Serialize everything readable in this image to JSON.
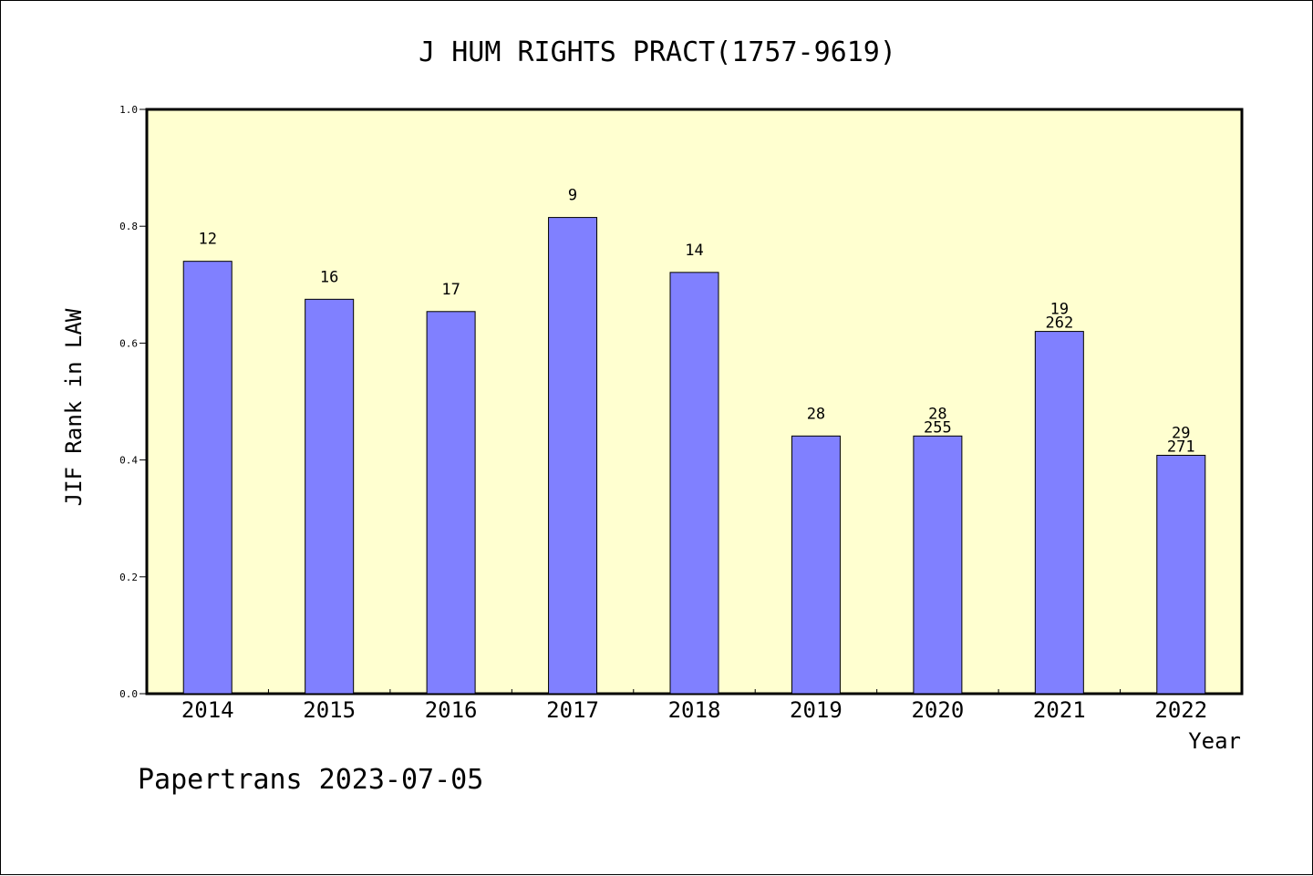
{
  "chart_data": {
    "type": "bar",
    "title": "J HUM RIGHTS PRACT(1757-9619)",
    "xlabel": "Year",
    "ylabel": "JIF Rank in LAW",
    "categories": [
      "2014",
      "2015",
      "2016",
      "2017",
      "2018",
      "2019",
      "2020",
      "2021",
      "2022"
    ],
    "values": [
      0.74,
      0.675,
      0.654,
      0.815,
      0.721,
      0.441,
      0.441,
      0.62,
      0.408
    ],
    "rank_labels": [
      "12",
      "16",
      "17",
      "9",
      "14",
      "28",
      "28",
      "19",
      "29"
    ],
    "total_labels": [
      "",
      "",
      "",
      "",
      "",
      "",
      "255",
      "262",
      "271"
    ],
    "ylim": [
      0,
      1.0
    ],
    "yticks": [
      "0.0",
      "0.2",
      "0.4",
      "0.6",
      "0.8",
      "1.0"
    ],
    "grid": false,
    "colors": {
      "bar": "#8080ff",
      "plot_background": "#ffffd0",
      "axis": "#000000"
    }
  },
  "footer": "Papertrans 2023-07-05"
}
